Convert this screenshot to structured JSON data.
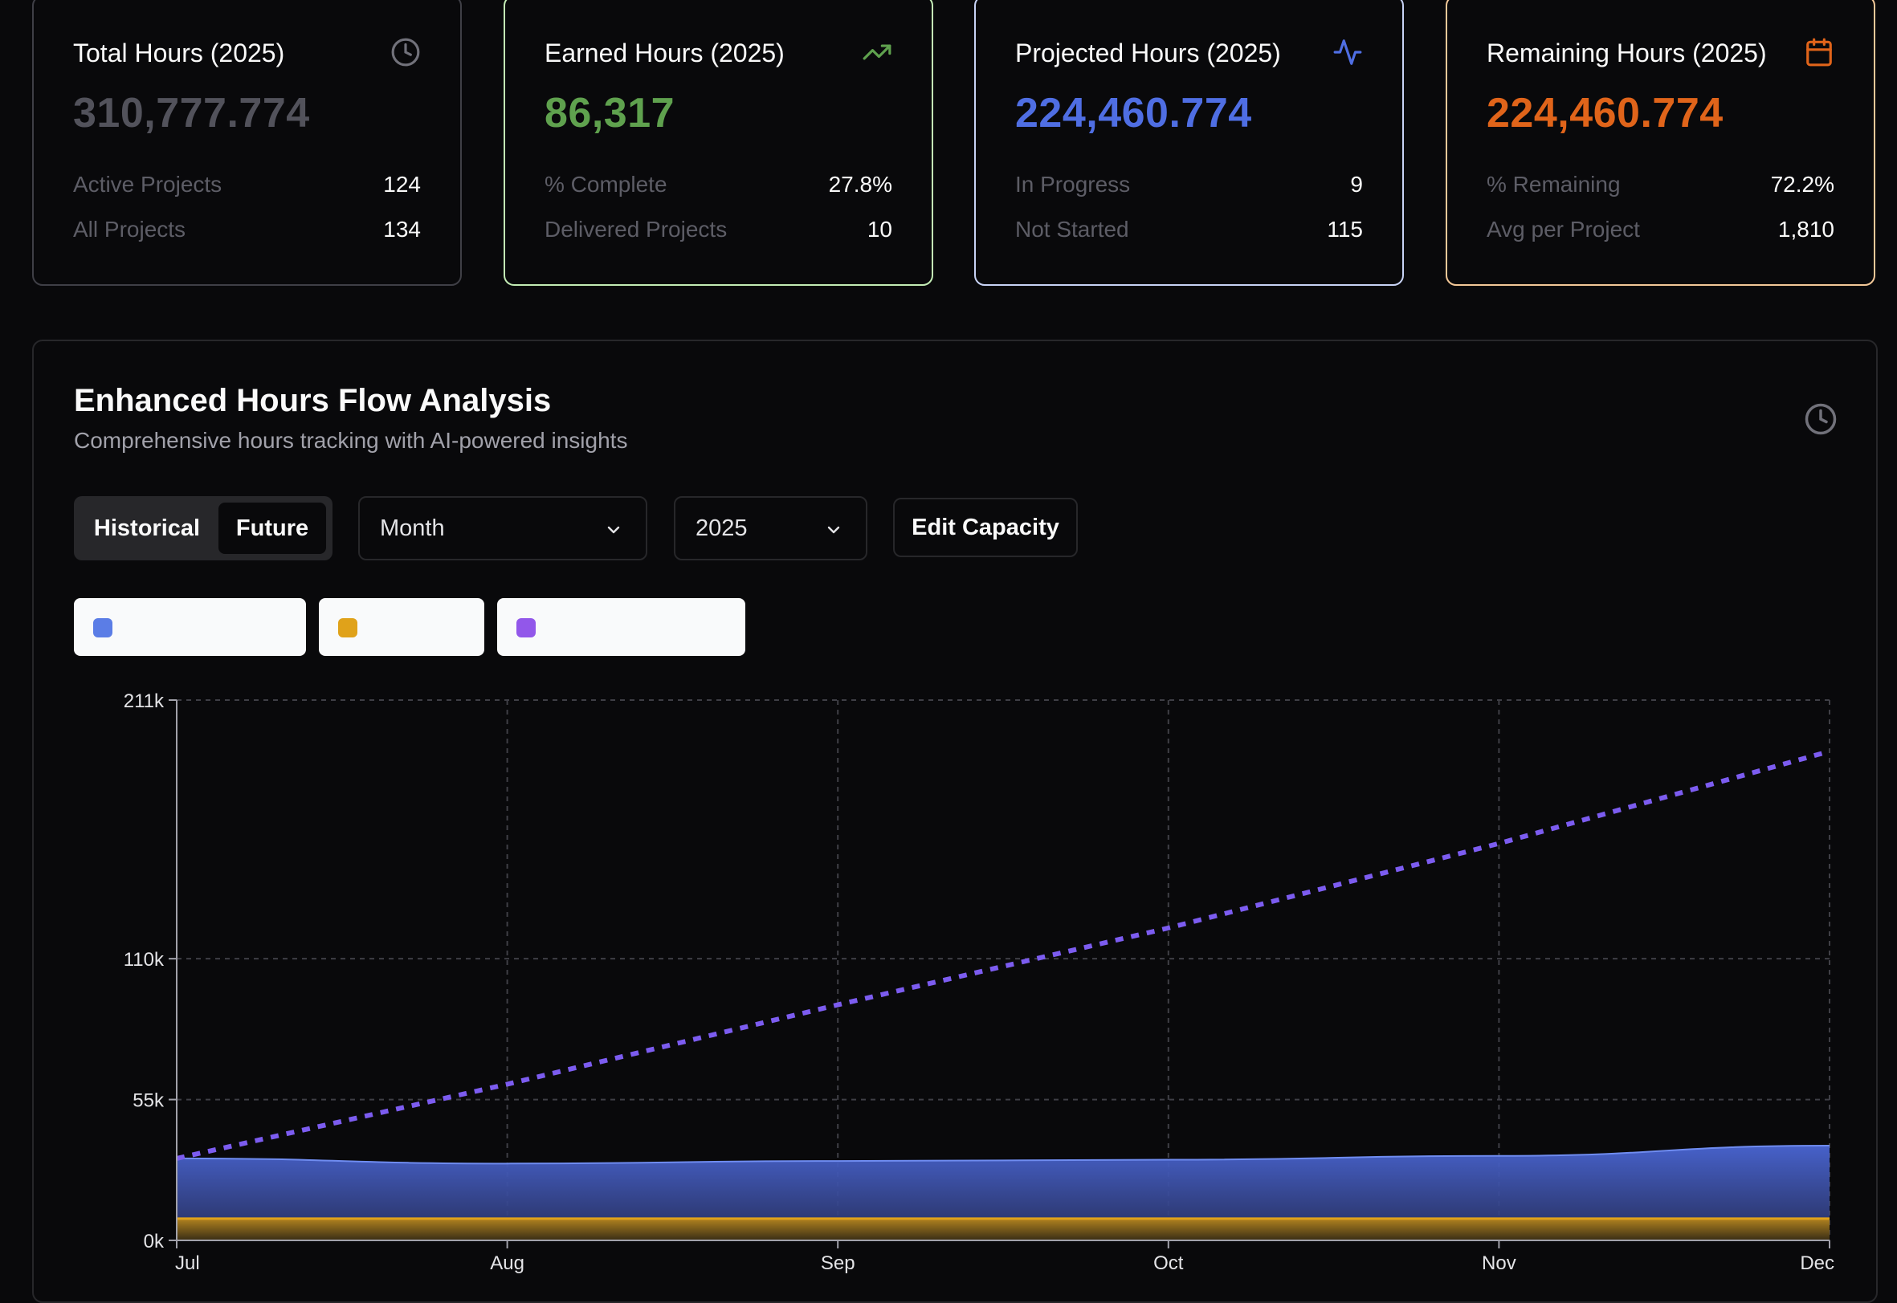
{
  "cards": [
    {
      "title": "Total Hours (2025)",
      "value": "310,777.774",
      "icon": "clock-icon",
      "value_color": "#52525b",
      "rows": [
        {
          "label": "Active Projects",
          "value": "124"
        },
        {
          "label": "All Projects",
          "value": "134"
        }
      ]
    },
    {
      "title": "Earned Hours (2025)",
      "value": "86,317",
      "icon": "trending-up-icon",
      "value_color": "#5fa14e",
      "rows": [
        {
          "label": "% Complete",
          "value": "27.8%"
        },
        {
          "label": "Delivered Projects",
          "value": "10"
        }
      ]
    },
    {
      "title": "Projected Hours (2025)",
      "value": "224,460.774",
      "icon": "activity-icon",
      "value_color": "#4f6ee3",
      "rows": [
        {
          "label": "In Progress",
          "value": "9"
        },
        {
          "label": "Not Started",
          "value": "115"
        }
      ]
    },
    {
      "title": "Remaining Hours (2025)",
      "value": "224,460.774",
      "icon": "calendar-icon",
      "value_color": "#e0641a",
      "rows": [
        {
          "label": "% Remaining",
          "value": "72.2%"
        },
        {
          "label": "Avg per Project",
          "value": "1,810"
        }
      ]
    }
  ],
  "panel": {
    "title": "Enhanced Hours Flow Analysis",
    "subtitle": "Comprehensive hours tracking with AI-powered insights",
    "toggle": {
      "historical": "Historical",
      "future": "Future",
      "selected": "Future"
    },
    "period_select": "Month",
    "year_select": "2025",
    "edit_capacity": "Edit Capacity",
    "legend": [
      {
        "label": "",
        "color": "#5b7de6"
      },
      {
        "label": "",
        "color": "#e0a21a"
      },
      {
        "label": "",
        "color": "#9257ea"
      }
    ]
  },
  "chart_data": {
    "type": "area",
    "x": [
      "Jul",
      "Aug",
      "Sep",
      "Oct",
      "Nov",
      "Dec"
    ],
    "y_ticks": [
      "0k",
      "55k",
      "110k",
      "211k"
    ],
    "ylim": [
      0,
      211000
    ],
    "grid": true,
    "series": [
      {
        "color": "#5b7de6",
        "style": "area",
        "values": [
          32000,
          30000,
          31000,
          31500,
          33000,
          37000
        ]
      },
      {
        "color": "#e0a21a",
        "style": "area",
        "values": [
          8500,
          8500,
          8500,
          8500,
          8500,
          8500
        ]
      },
      {
        "color": "#8b5cf6",
        "style": "dashed-line",
        "values": [
          32000,
          61000,
          92000,
          122000,
          155000,
          191000
        ]
      }
    ]
  }
}
